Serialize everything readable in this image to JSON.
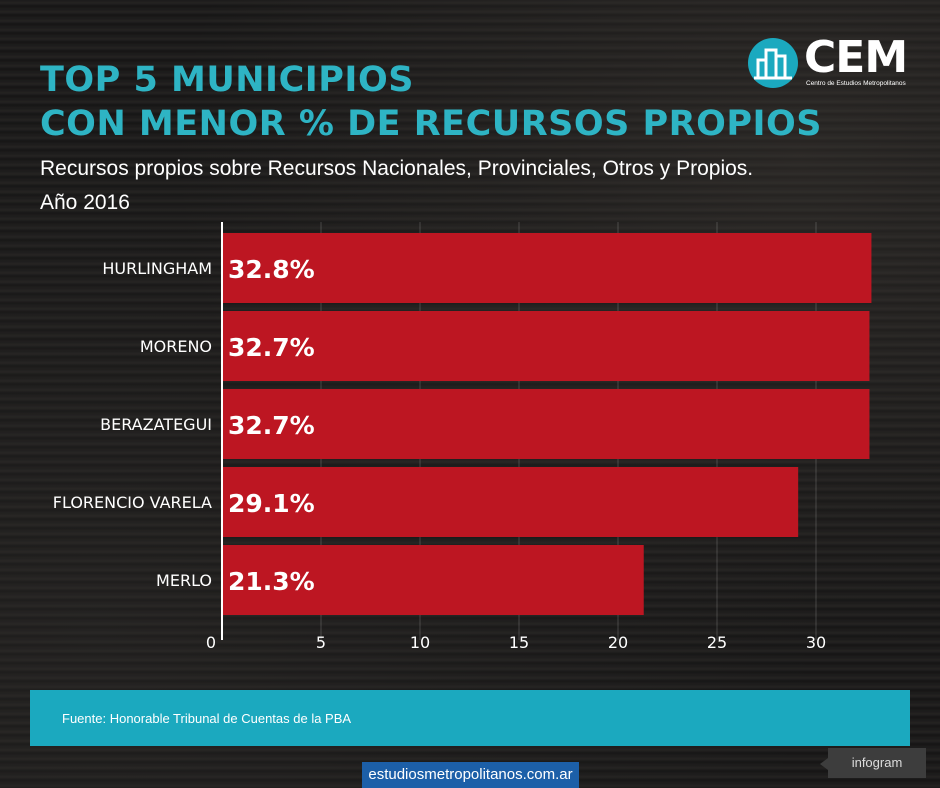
{
  "header": {
    "title_line1": "TOP 5 MUNICIPIOS",
    "title_line2": "CON MENOR % DE RECURSOS PROPIOS",
    "subtitle_line1": "Recursos propios sobre Recursos Nacionales, Provinciales, Otros y Propios.",
    "subtitle_line2": "Año 2016"
  },
  "logo": {
    "text": "CEM",
    "subtext": "Centro de Estudios Metropolitanos"
  },
  "chart_data": {
    "type": "bar",
    "orientation": "horizontal",
    "categories": [
      "HURLINGHAM",
      "MORENO",
      "BERAZATEGUI",
      "FLORENCIO VARELA",
      "MERLO"
    ],
    "values": [
      32.8,
      32.7,
      32.7,
      29.1,
      21.3
    ],
    "data_labels": [
      "32.8%",
      "32.7%",
      "32.7%",
      "29.1%",
      "21.3%"
    ],
    "xlim": [
      0,
      33
    ],
    "xticks": [
      0,
      5,
      10,
      15,
      20,
      25,
      30
    ],
    "grid": true,
    "bar_color": "#bd1622"
  },
  "footer": {
    "source": "Fuente: Honorable Tribunal de Cuentas de la PBA",
    "website": "estudiosmetropolitanos.com.ar",
    "credit": "infogram"
  },
  "colors": {
    "accent": "#2eb4c4",
    "band": "#1ba9bf",
    "bar": "#bd1622",
    "site": "#1c5fa8"
  }
}
